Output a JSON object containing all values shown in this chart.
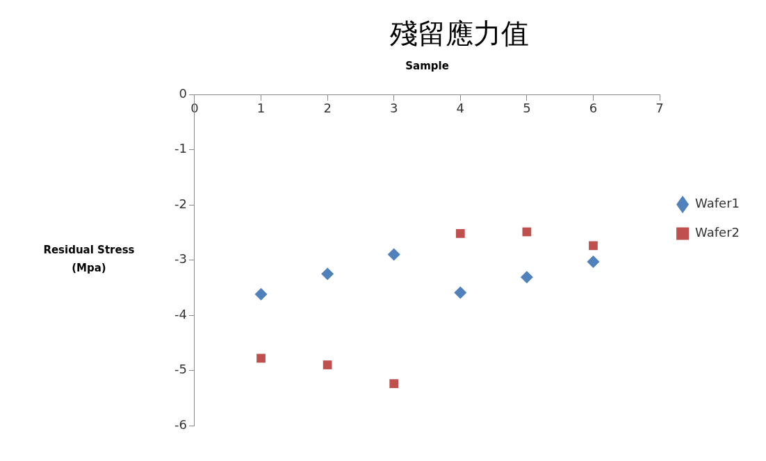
{
  "chart_data": {
    "type": "scatter",
    "title": "殘留應力值",
    "xlabel": "Sample",
    "ylabel": "Residual Stress (Mpa)",
    "x": [
      1,
      2,
      3,
      4,
      5,
      6
    ],
    "series": [
      {
        "name": "Wafer1",
        "color": "#4f81bd",
        "marker": "diamond",
        "values": [
          -3.62,
          -3.25,
          -2.9,
          -3.59,
          -3.31,
          -3.03
        ]
      },
      {
        "name": "Wafer2",
        "color": "#c0504d",
        "marker": "square",
        "values": [
          -4.78,
          -4.9,
          -5.24,
          -2.52,
          -2.49,
          -2.74
        ]
      }
    ],
    "xlim": [
      0,
      7
    ],
    "xticks": [
      0,
      1,
      2,
      3,
      4,
      5,
      6,
      7
    ],
    "ylim": [
      -6,
      0
    ],
    "yticks": [
      -6,
      -5,
      -4,
      -3,
      -2,
      -1,
      0
    ],
    "grid": false,
    "legend": "right"
  }
}
